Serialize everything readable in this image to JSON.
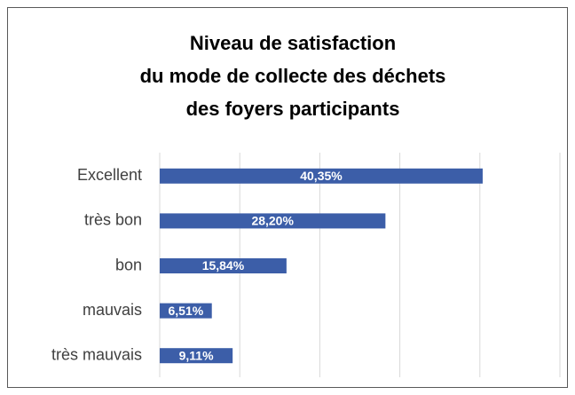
{
  "chart_data": {
    "type": "hbar",
    "title": [
      "Niveau de satisfaction",
      "du mode de collecte des déchets",
      "des foyers participants"
    ],
    "categories": [
      "Excellent",
      "très bon",
      "bon",
      "mauvais",
      "très mauvais"
    ],
    "values": [
      40.35,
      28.2,
      15.84,
      6.51,
      9.11
    ],
    "value_labels": [
      "40,35%",
      "28,20%",
      "15,84%",
      "6,51%",
      "9,11%"
    ],
    "color": "#3c5ea8",
    "xlim": [
      0,
      50
    ],
    "xticks": [
      0,
      10,
      20,
      30,
      40,
      50
    ],
    "grid": true
  }
}
